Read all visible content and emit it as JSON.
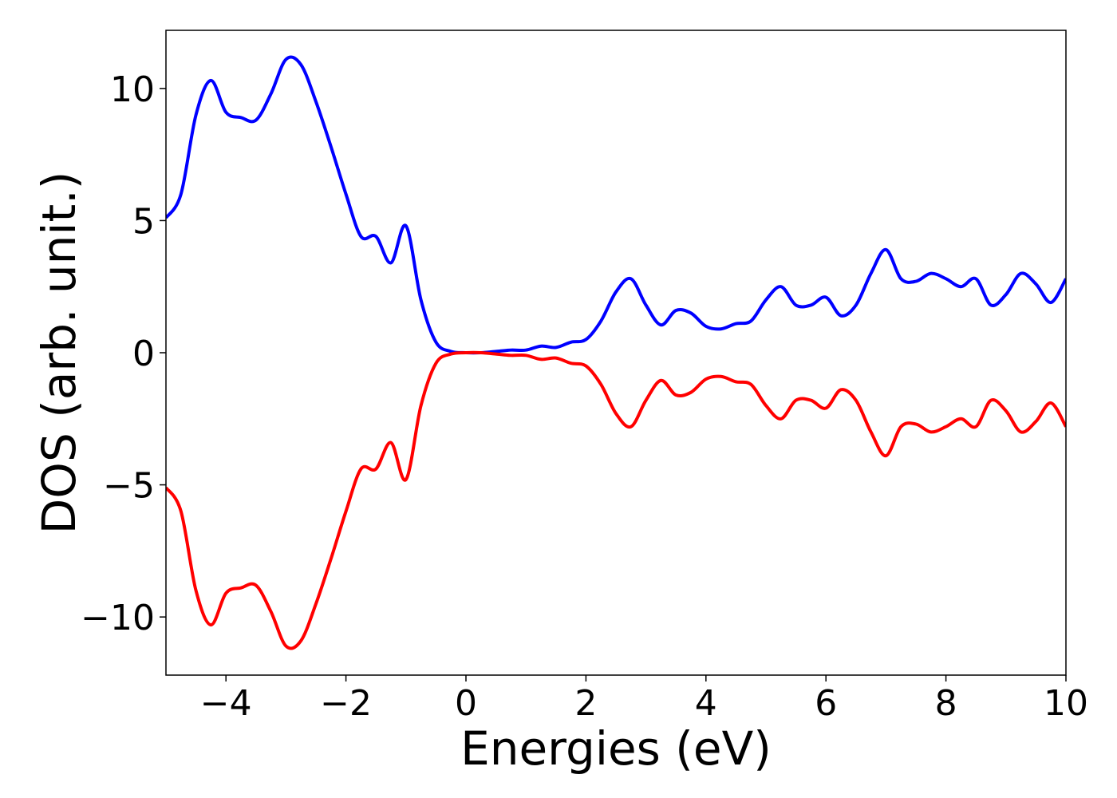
{
  "chart_data": {
    "type": "line",
    "xlabel": "Energies (eV)",
    "ylabel": "DOS (arb. unit.)",
    "x": [
      -5,
      -4.75,
      -4.5,
      -4.25,
      -4,
      -3.75,
      -3.5,
      -3.25,
      -3,
      -2.75,
      -2.5,
      -2.25,
      -2,
      -1.75,
      -1.5,
      -1.25,
      -1,
      -0.75,
      -0.5,
      -0.25,
      0,
      0.25,
      0.5,
      0.75,
      1,
      1.25,
      1.5,
      1.75,
      2,
      2.25,
      2.5,
      2.75,
      3,
      3.25,
      3.5,
      3.75,
      4,
      4.25,
      4.5,
      4.75,
      5,
      5.25,
      5.5,
      5.75,
      6,
      6.25,
      6.5,
      6.75,
      7,
      7.25,
      7.5,
      7.75,
      8,
      8.25,
      8.5,
      8.75,
      9,
      9.25,
      9.5,
      9.75,
      10
    ],
    "series": [
      {
        "color": "#0000ff",
        "values": [
          5.1,
          6.0,
          9.0,
          10.3,
          9.1,
          8.9,
          8.8,
          9.8,
          11.1,
          10.9,
          9.5,
          7.8,
          6.0,
          4.4,
          4.4,
          3.4,
          4.8,
          2.0,
          0.4,
          0.05,
          0,
          0,
          0.05,
          0.1,
          0.1,
          0.25,
          0.2,
          0.4,
          0.5,
          1.2,
          2.3,
          2.8,
          1.8,
          1.05,
          1.6,
          1.5,
          1.0,
          0.9,
          1.1,
          1.2,
          2.0,
          2.5,
          1.8,
          1.8,
          2.1,
          1.4,
          1.8,
          3.0,
          3.9,
          2.8,
          2.7,
          3.0,
          2.8,
          2.5,
          2.8,
          1.8,
          2.2,
          3.0,
          2.6,
          1.9,
          2.8
        ]
      },
      {
        "color": "#ff0000",
        "values": [
          -5.1,
          -6.0,
          -9.0,
          -10.3,
          -9.1,
          -8.9,
          -8.8,
          -9.8,
          -11.1,
          -10.9,
          -9.5,
          -7.8,
          -6.0,
          -4.4,
          -4.4,
          -3.4,
          -4.8,
          -2.0,
          -0.4,
          -0.05,
          0,
          0,
          -0.05,
          -0.1,
          -0.1,
          -0.25,
          -0.2,
          -0.4,
          -0.5,
          -1.2,
          -2.3,
          -2.8,
          -1.8,
          -1.05,
          -1.6,
          -1.5,
          -1.0,
          -0.9,
          -1.1,
          -1.2,
          -2.0,
          -2.5,
          -1.8,
          -1.8,
          -2.1,
          -1.4,
          -1.8,
          -3.0,
          -3.9,
          -2.8,
          -2.7,
          -3.0,
          -2.8,
          -2.5,
          -2.8,
          -1.8,
          -2.2,
          -3.0,
          -2.6,
          -1.9,
          -2.8
        ]
      }
    ],
    "xlim": [
      -5,
      10
    ],
    "xticks": [
      {
        "value": -4,
        "label": "−4"
      },
      {
        "value": -2,
        "label": "−2"
      },
      0,
      2,
      4,
      6,
      8,
      10
    ],
    "ylim": [
      -12.2,
      12.2
    ],
    "yticks": [
      {
        "value": -10,
        "label": "−10"
      },
      {
        "value": -5,
        "label": "−5"
      },
      0,
      5,
      10
    ]
  }
}
